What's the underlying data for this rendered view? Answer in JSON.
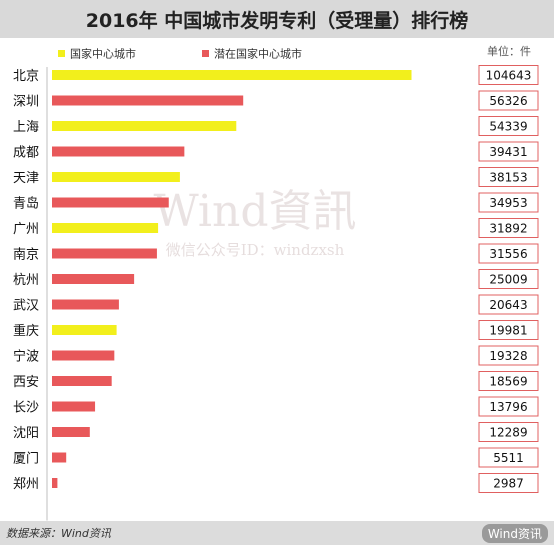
{
  "title": "2016年 中国城市发明专利（受理量）排行榜",
  "unit": "单位：件",
  "watermark": {
    "line1": "Wind資訊",
    "line2": "微信公众号ID：windzxsh"
  },
  "source": "数据来源：Wind资讯",
  "brand": "Wind资讯",
  "colors": {
    "national": "#f2ef1c",
    "potential": "#e8585a"
  },
  "chart_data": {
    "type": "bar",
    "orientation": "horizontal",
    "categories": [
      "北京",
      "深圳",
      "上海",
      "成都",
      "天津",
      "青岛",
      "广州",
      "南京",
      "杭州",
      "武汉",
      "重庆",
      "宁波",
      "西安",
      "长沙",
      "沈阳",
      "厦门",
      "郑州"
    ],
    "values": [
      104643,
      56326,
      54339,
      39431,
      38153,
      34953,
      31892,
      31556,
      25009,
      20643,
      19981,
      19328,
      18569,
      13796,
      12289,
      5511,
      2987
    ],
    "group": [
      "national",
      "potential",
      "national",
      "potential",
      "national",
      "potential",
      "national",
      "potential",
      "potential",
      "potential",
      "national",
      "potential",
      "potential",
      "potential",
      "potential",
      "potential",
      "potential"
    ],
    "legend": [
      {
        "key": "national",
        "label": "国家中心城市"
      },
      {
        "key": "potential",
        "label": "潜在国家中心城市"
      }
    ],
    "legend_position": "top-left",
    "xlim": [
      0,
      120000
    ],
    "xticks": [
      0,
      20000,
      40000,
      60000,
      80000,
      100000,
      120000
    ],
    "xtick_labels": [
      "0",
      "20000",
      "40000",
      "60000",
      "80000",
      "100000",
      "120000"
    ],
    "grid": false
  }
}
